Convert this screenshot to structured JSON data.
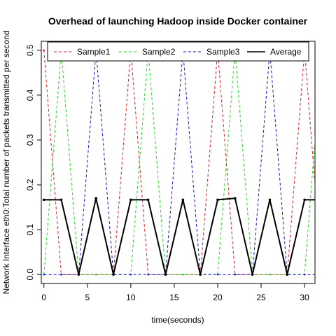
{
  "chart_data": {
    "type": "line",
    "title": "Overhead of launching Hadoop inside Docker container",
    "xlabel": "time(seconds)",
    "ylabel": "Network Interface eth0:Total number of packets transmitted per second",
    "xlim": [
      -0.3,
      31.2
    ],
    "ylim": [
      -0.02,
      0.52
    ],
    "x_ticks": [
      0,
      5,
      10,
      15,
      20,
      25,
      30
    ],
    "y_ticks": [
      0.0,
      0.1,
      0.2,
      0.3,
      0.4,
      0.5
    ],
    "y_tick_labels": [
      "0.0",
      "0.1",
      "0.2",
      "0.3",
      "0.4",
      "0.5"
    ],
    "legend_position": "top",
    "x": [
      0,
      2,
      4,
      6,
      8,
      10,
      12,
      14,
      16,
      18,
      20,
      22,
      24,
      26,
      28,
      30,
      32
    ],
    "series": [
      {
        "name": "Sample1",
        "color": "#e0202a",
        "style": "dashed",
        "values": [
          0.5,
          0,
          0,
          0,
          0,
          0.5,
          0,
          0,
          0,
          0,
          0.5,
          0,
          0,
          0,
          0,
          0.5,
          0
        ]
      },
      {
        "name": "Sample2",
        "color": "#22dd22",
        "style": "dashed",
        "values": [
          0,
          0.5,
          0,
          0,
          0,
          0,
          0.5,
          0,
          0,
          0,
          0,
          0.5,
          0,
          0,
          0,
          0,
          0.5
        ]
      },
      {
        "name": "Sample3",
        "color": "#1515cc",
        "style": "dashed",
        "values": [
          0,
          0,
          0,
          0.5,
          0,
          0,
          0,
          0,
          0.5,
          0,
          0,
          0,
          0,
          0.5,
          0,
          0,
          0
        ]
      },
      {
        "name": "Average",
        "color": "#000000",
        "style": "solid",
        "values": [
          0.1667,
          0.1667,
          0,
          0.17,
          0,
          0.1667,
          0.1667,
          0,
          0.1667,
          0,
          0.1667,
          0.17,
          0,
          0.1667,
          0,
          0.1667,
          0.1667
        ]
      }
    ]
  }
}
